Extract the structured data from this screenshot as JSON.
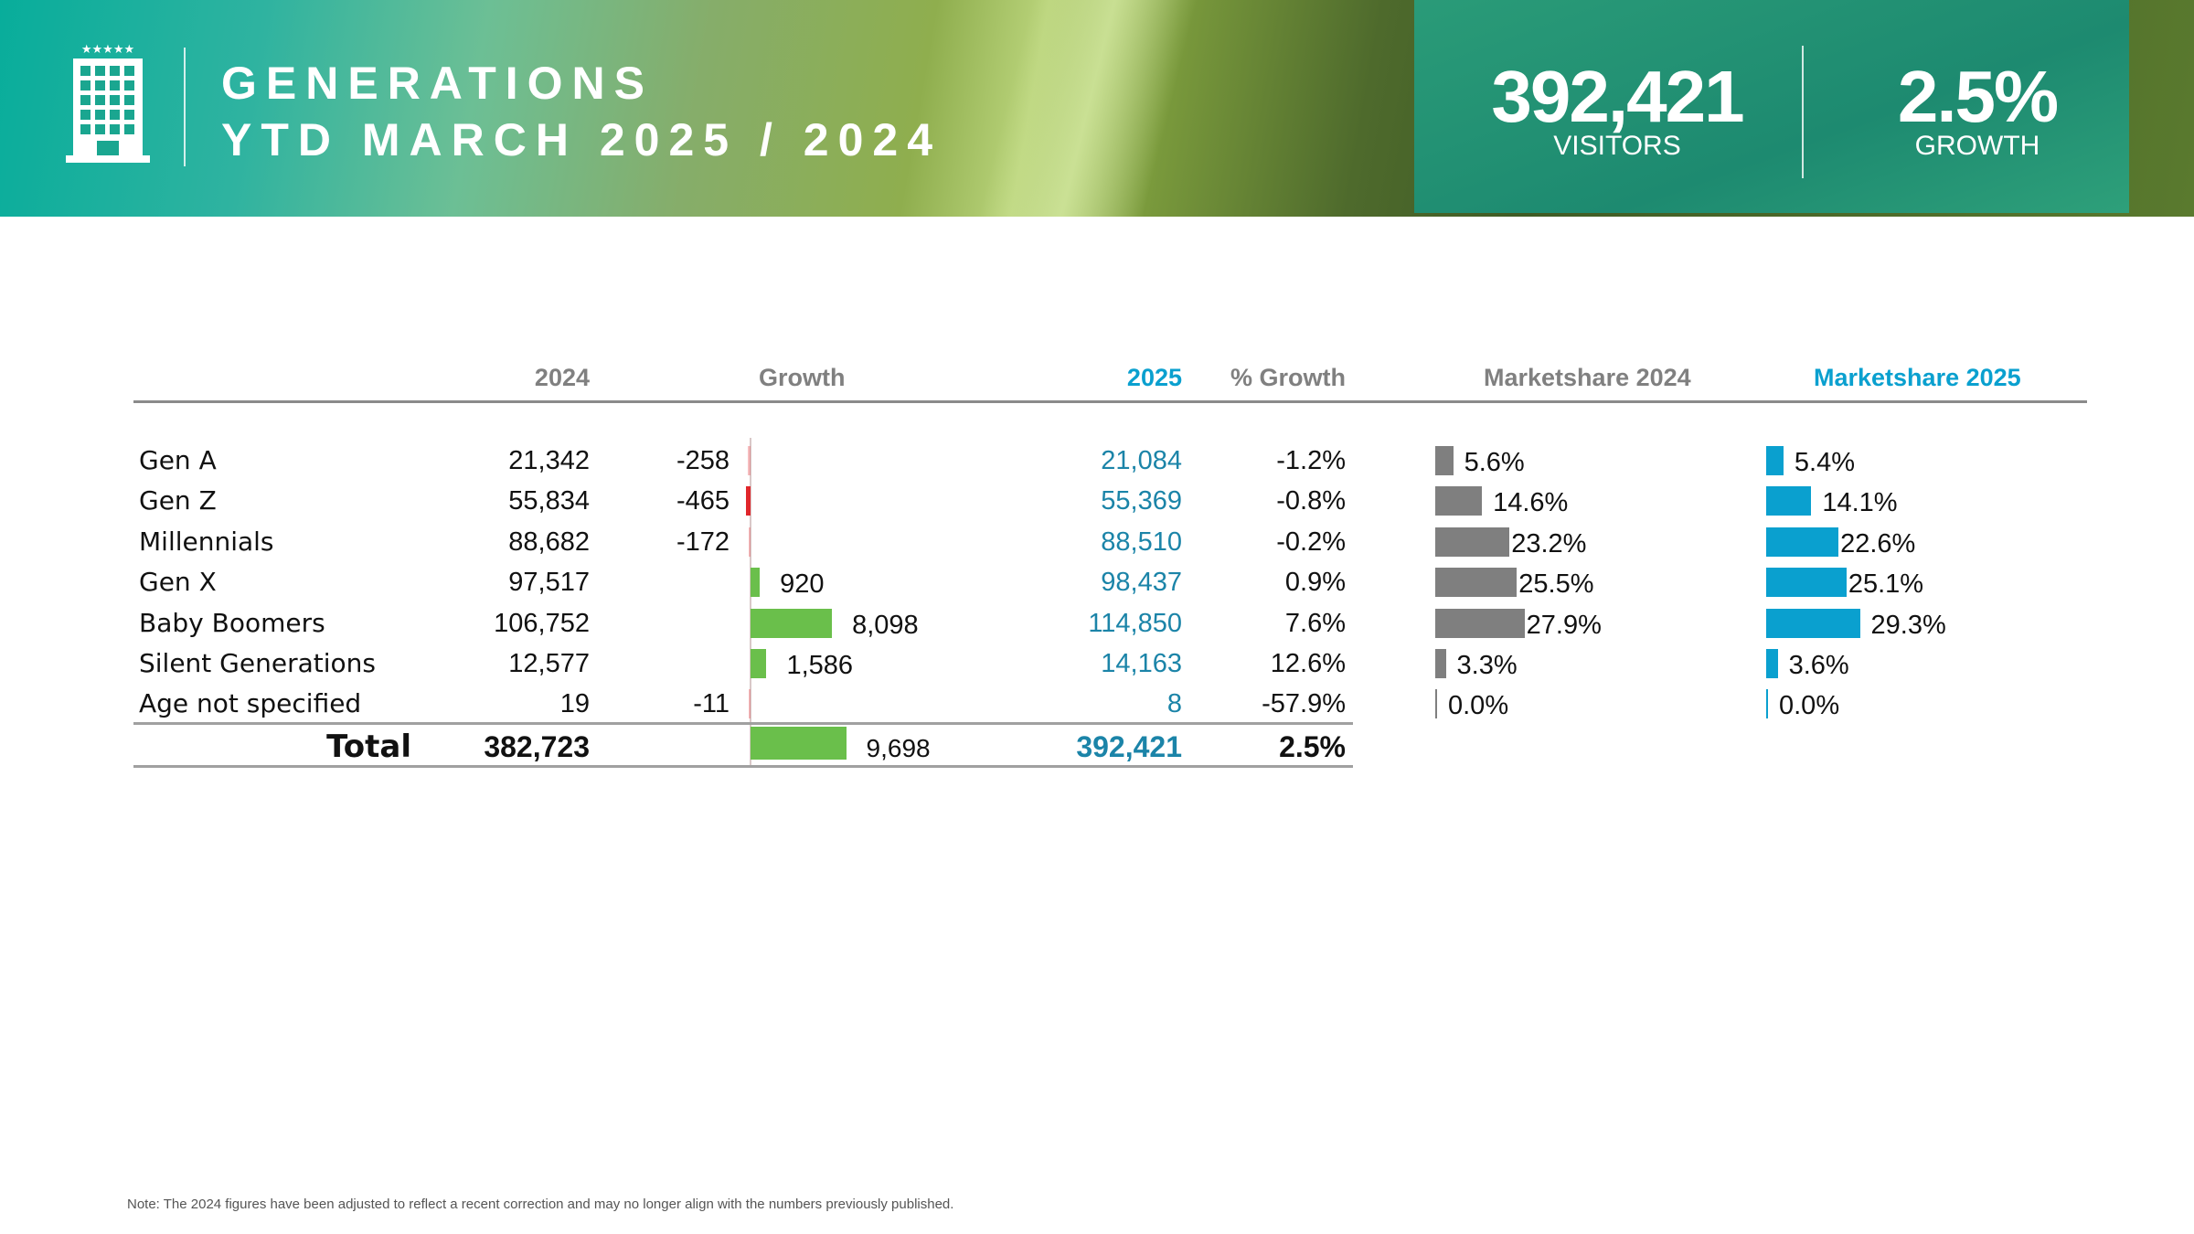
{
  "header": {
    "title_line1": "GENERATIONS",
    "title_line2": "YTD MARCH 2025 / 2024",
    "icon": "hotel-building-icon"
  },
  "kpis": {
    "visitors_value": "392,421",
    "visitors_label": "VISITORS",
    "growth_value": "2.5%",
    "growth_label": "GROWTH"
  },
  "columns": {
    "y2024": "2024",
    "growth": "Growth",
    "y2025": "2025",
    "pct_growth": "% Growth",
    "ms2024": "Marketshare 2024",
    "ms2025": "Marketshare 2025"
  },
  "rows": [
    {
      "label": "Gen A",
      "v2024": "21,342",
      "growth": -258,
      "growth_text": "-258",
      "v2025": "21,084",
      "pct": "-1.2%",
      "ms2024": 5.6,
      "ms2024_text": "5.6%",
      "ms2025": 5.4,
      "ms2025_text": "5.4%"
    },
    {
      "label": "Gen Z",
      "v2024": "55,834",
      "growth": -465,
      "growth_text": "-465",
      "v2025": "55,369",
      "pct": "-0.8%",
      "ms2024": 14.6,
      "ms2024_text": "14.6%",
      "ms2025": 14.1,
      "ms2025_text": "14.1%"
    },
    {
      "label": "Millennials",
      "v2024": "88,682",
      "growth": -172,
      "growth_text": "-172",
      "v2025": "88,510",
      "pct": "-0.2%",
      "ms2024": 23.2,
      "ms2024_text": "23.2%",
      "ms2025": 22.6,
      "ms2025_text": "22.6%"
    },
    {
      "label": "Gen X",
      "v2024": "97,517",
      "growth": 920,
      "growth_text": "920",
      "v2025": "98,437",
      "pct": "0.9%",
      "ms2024": 25.5,
      "ms2024_text": "25.5%",
      "ms2025": 25.1,
      "ms2025_text": "25.1%"
    },
    {
      "label": "Baby Boomers",
      "v2024": "106,752",
      "growth": 8098,
      "growth_text": "8,098",
      "v2025": "114,850",
      "pct": "7.6%",
      "ms2024": 27.9,
      "ms2024_text": "27.9%",
      "ms2025": 29.3,
      "ms2025_text": "29.3%"
    },
    {
      "label": "Silent Generations",
      "v2024": "12,577",
      "growth": 1586,
      "growth_text": "1,586",
      "v2025": "14,163",
      "pct": "12.6%",
      "ms2024": 3.3,
      "ms2024_text": "3.3%",
      "ms2025": 3.6,
      "ms2025_text": "3.6%"
    },
    {
      "label": "Age not specified",
      "v2024": "19",
      "growth": -11,
      "growth_text": "-11",
      "v2025": "8",
      "pct": "-57.9%",
      "ms2024": 0.0,
      "ms2024_text": "0.0%",
      "ms2025": 0.0,
      "ms2025_text": "0.0%"
    }
  ],
  "total": {
    "label": "Total",
    "v2024": "382,723",
    "growth": 9698,
    "growth_text": "9,698",
    "v2025": "392,421",
    "pct": "2.5%"
  },
  "colors": {
    "pos": "#6abf4b",
    "neg": "#e0262b",
    "ms2024": "#7f7f7f",
    "ms2025": "#0aa0cf",
    "blue": "#1b84a8"
  },
  "note": "Note: The 2024 figures have been adjusted to reflect a recent correction and may no longer align with the numbers previously published."
}
